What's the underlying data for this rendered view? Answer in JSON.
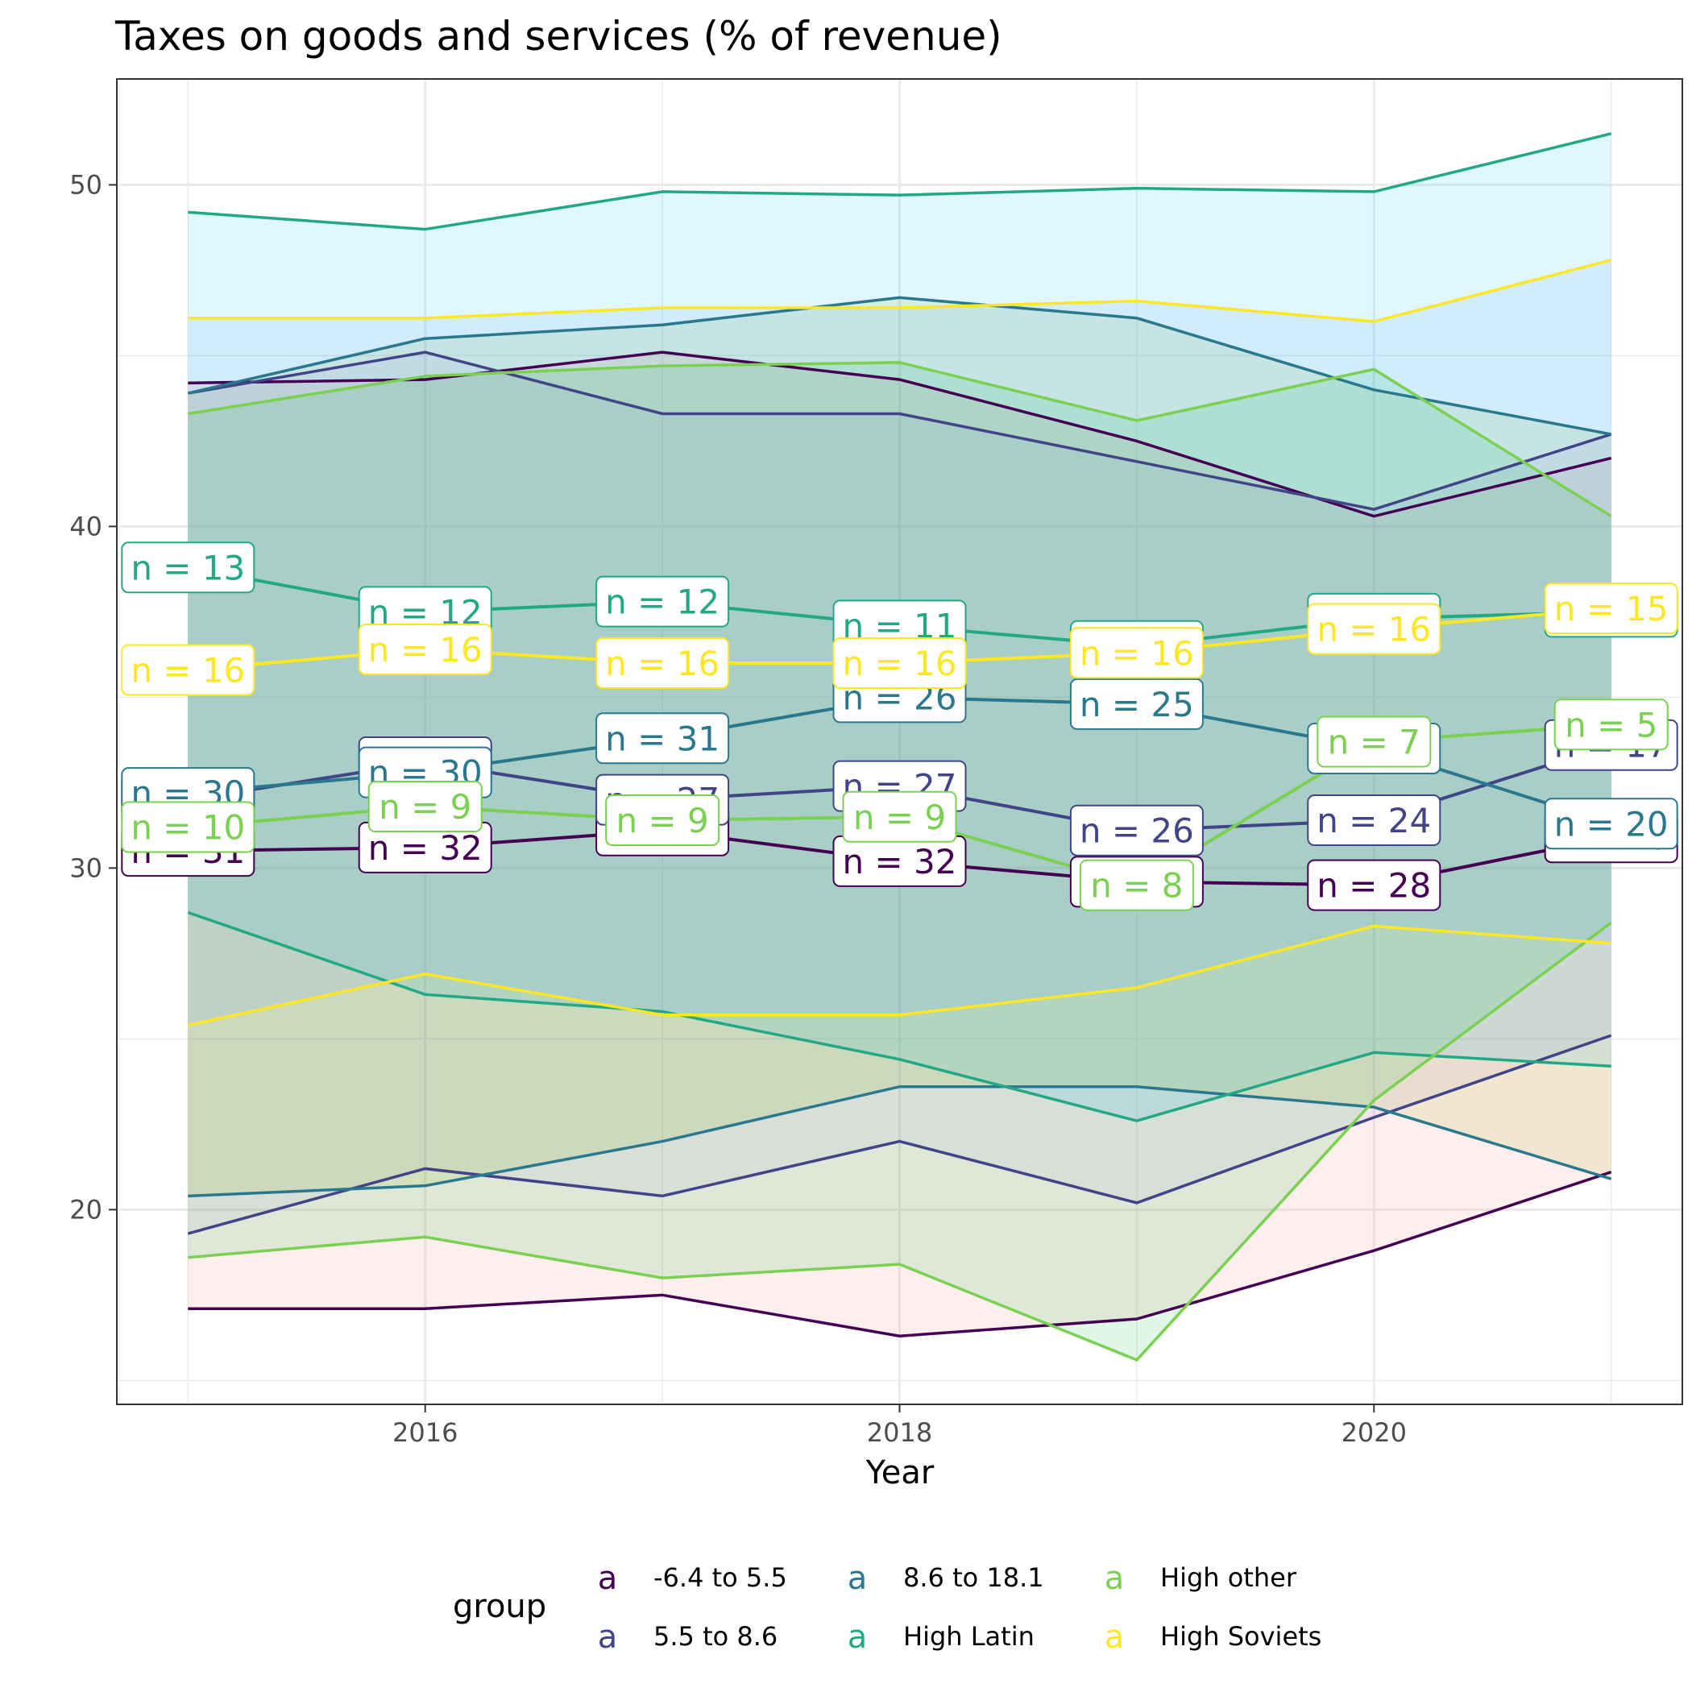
{
  "chart_data": {
    "type": "line",
    "title": "Taxes on goods and services (% of revenue)",
    "xlabel": "Year",
    "ylabel": "",
    "xlim": [
      2014.7,
      2021.3
    ],
    "ylim": [
      14.3,
      53.1
    ],
    "x_ticks": [
      2016,
      2018,
      2020
    ],
    "y_ticks": [
      20,
      30,
      40,
      50
    ],
    "grid": true,
    "legend_title": "group",
    "legend_position": "bottom",
    "x": [
      2015,
      2016,
      2017,
      2018,
      2019,
      2020,
      2021
    ],
    "series": [
      {
        "name": "-6.4 to 5.5",
        "color": "#440154",
        "fill": "#f8766d",
        "mean": [
          30.5,
          30.6,
          31.1,
          30.2,
          29.6,
          29.5,
          30.9
        ],
        "upper": [
          44.2,
          44.3,
          45.1,
          44.3,
          42.5,
          40.3,
          42.0
        ],
        "lower": [
          17.1,
          17.1,
          17.5,
          16.3,
          16.8,
          18.8,
          21.1
        ],
        "labels": [
          "n = 31",
          "n = 32",
          "n = 32",
          "n = 32",
          "n = 29",
          "n = 28",
          "n = 26"
        ]
      },
      {
        "name": "5.5 to 8.6",
        "color": "#414487",
        "fill": "#b79feb",
        "mean": [
          32.0,
          33.1,
          32.0,
          32.4,
          31.1,
          31.4,
          33.6
        ],
        "upper": [
          43.9,
          45.1,
          43.3,
          43.3,
          41.9,
          40.5,
          42.7
        ],
        "lower": [
          19.3,
          21.2,
          20.4,
          22.0,
          20.2,
          22.7,
          25.1
        ],
        "labels": [
          "n = 29",
          "n = 30",
          "n = 27",
          "n = 27",
          "n = 26",
          "n = 24",
          "n = 17"
        ]
      },
      {
        "name": "8.6 to 18.1",
        "color": "#2a788e",
        "fill": "#93aa00",
        "mean": [
          32.2,
          32.8,
          33.8,
          35.0,
          34.8,
          33.5,
          31.3
        ],
        "upper": [
          43.9,
          45.5,
          45.9,
          46.7,
          46.1,
          44.0,
          42.7
        ],
        "lower": [
          20.4,
          20.7,
          22.0,
          23.6,
          23.6,
          23.0,
          20.9
        ],
        "labels": [
          "n = 30",
          "n = 30",
          "n = 31",
          "n = 26",
          "n = 25",
          "n = 21",
          "n = 20"
        ]
      },
      {
        "name": "High Latin",
        "color": "#22a884",
        "fill": "#00c1f0",
        "mean": [
          38.8,
          37.5,
          37.8,
          37.1,
          36.5,
          37.3,
          37.5
        ],
        "upper": [
          49.2,
          48.7,
          49.8,
          49.7,
          49.9,
          49.8,
          51.5
        ],
        "lower": [
          28.7,
          26.3,
          25.8,
          24.4,
          22.6,
          24.6,
          24.2
        ],
        "labels": [
          "n = 13",
          "n = 12",
          "n = 12",
          "n = 11",
          "n = 12",
          "n = 12",
          "n = 11"
        ]
      },
      {
        "name": "High other",
        "color": "#7ad151",
        "fill": "#00ba38",
        "mean": [
          31.2,
          31.8,
          31.4,
          31.5,
          29.5,
          33.7,
          34.2
        ],
        "upper": [
          43.3,
          44.4,
          44.7,
          44.8,
          43.1,
          44.6,
          40.3
        ],
        "lower": [
          18.6,
          19.2,
          18.0,
          18.4,
          15.6,
          23.2,
          28.4
        ],
        "labels": [
          "n = 10",
          "n = 9",
          "n = 9",
          "n = 9",
          "n = 8",
          "n = 7",
          "n = 5"
        ]
      },
      {
        "name": "High Soviets",
        "color": "#fde725",
        "fill": "#619cff",
        "mean": [
          35.8,
          36.4,
          36.0,
          36.0,
          36.3,
          37.0,
          37.6
        ],
        "upper": [
          46.1,
          46.1,
          46.4,
          46.4,
          46.6,
          46.0,
          47.8
        ],
        "lower": [
          25.4,
          26.9,
          25.7,
          25.7,
          26.5,
          28.3,
          27.8
        ],
        "labels": [
          "n = 16",
          "n = 16",
          "n = 16",
          "n = 16",
          "n = 16",
          "n = 16",
          "n = 15"
        ]
      }
    ]
  }
}
